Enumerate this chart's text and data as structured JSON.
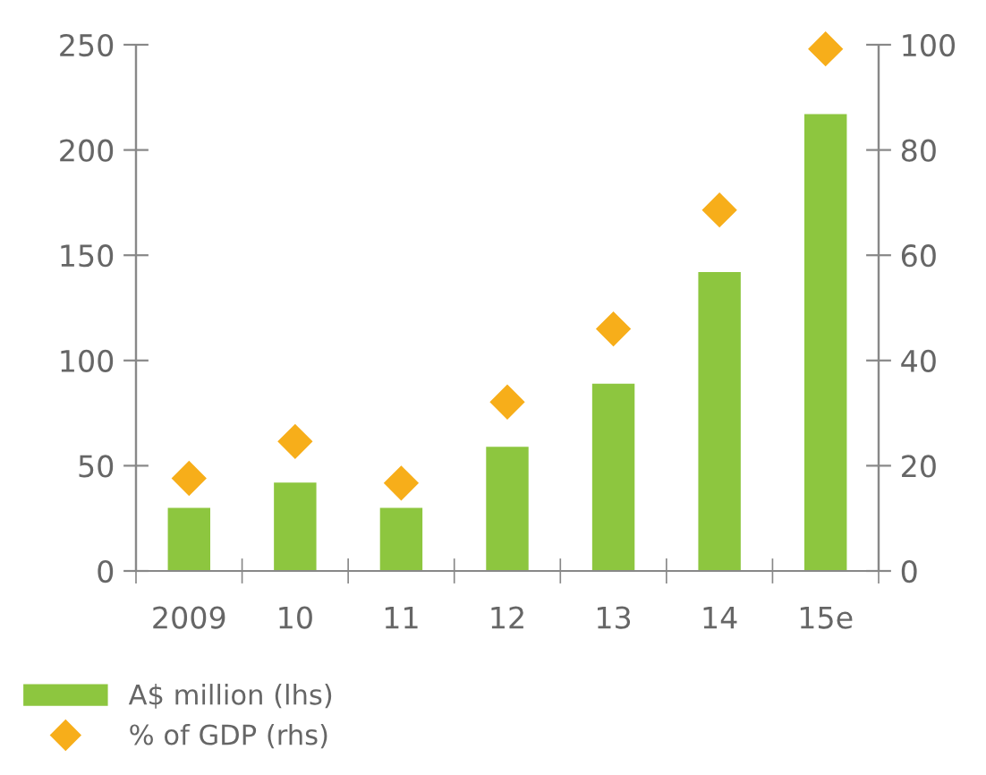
{
  "chart_data": {
    "type": "bar",
    "categories": [
      "2009",
      "10",
      "11",
      "12",
      "13",
      "14",
      "15e"
    ],
    "series": [
      {
        "name": "A$ million (lhs)",
        "color": "#8dc63f",
        "values": [
          30,
          42,
          30,
          59,
          89,
          142,
          217
        ]
      },
      {
        "name": "% of GDP (rhs)",
        "type": "scatter",
        "axis": "y2",
        "marker": "diamond",
        "color": "#f7ae1a",
        "values": [
          17.6,
          24.6,
          16.7,
          32.1,
          46,
          68.6,
          99.2
        ]
      }
    ],
    "ylim": [
      0,
      250
    ],
    "yticks": [
      0,
      50,
      100,
      150,
      200,
      250
    ],
    "y2lim": [
      0,
      100
    ],
    "y2ticks": [
      0,
      20,
      40,
      60,
      80,
      100
    ],
    "grid": false,
    "legend": "bottom left"
  }
}
